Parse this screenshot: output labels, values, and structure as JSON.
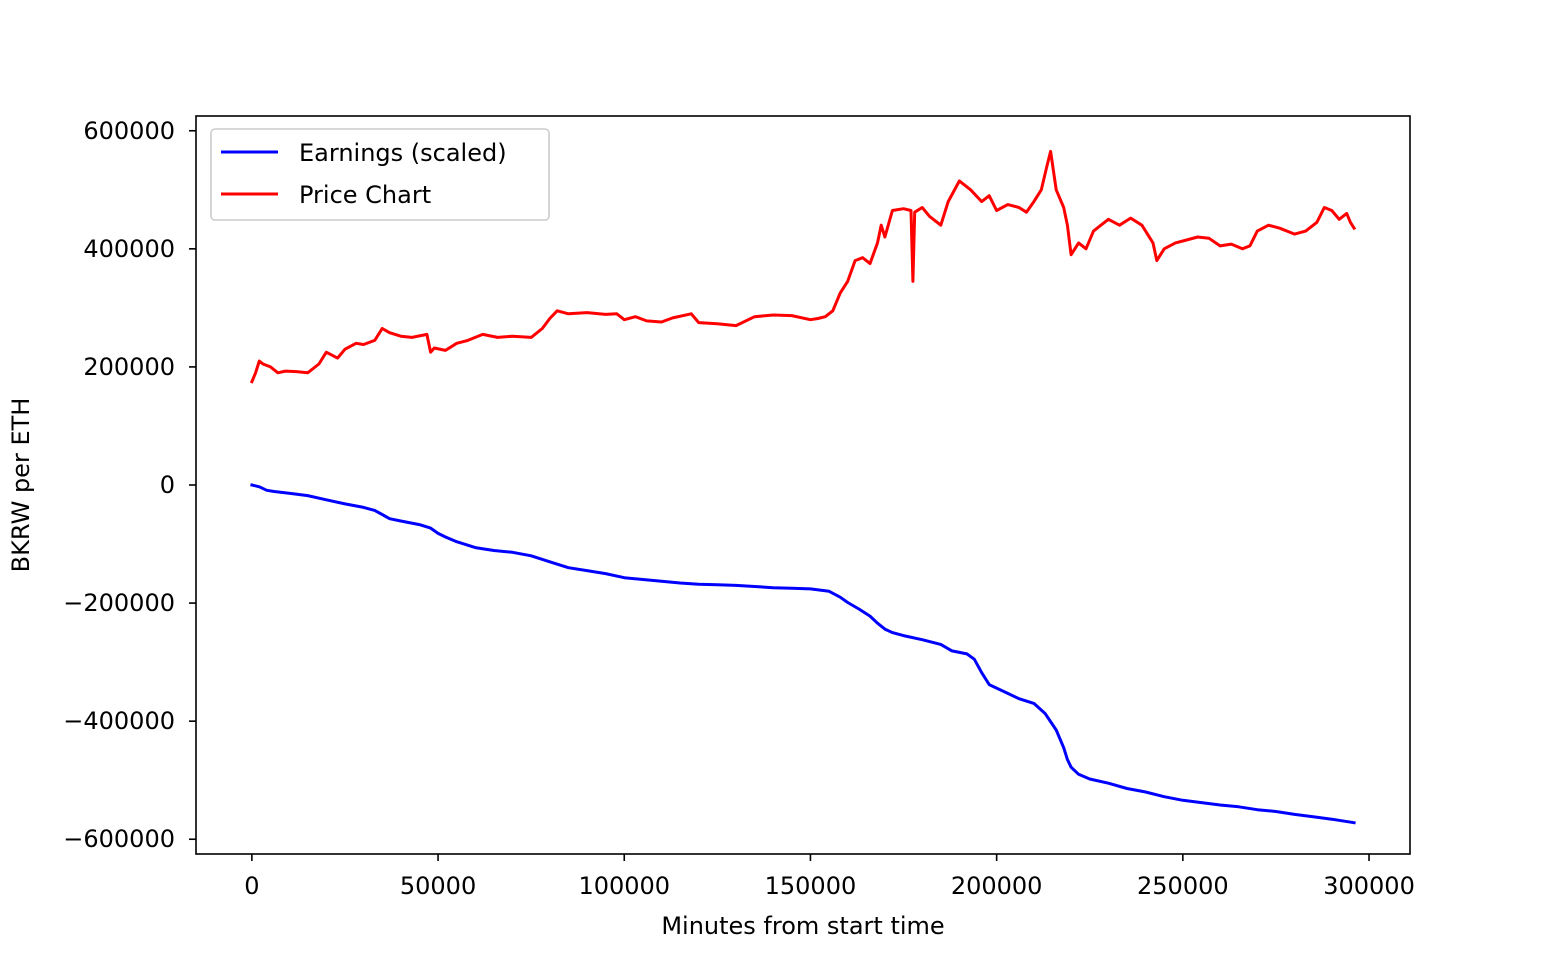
{
  "chart_data": {
    "type": "line",
    "title": "",
    "xlabel": "Minutes from start time",
    "ylabel": "BKRW per ETH",
    "xlim": [
      -15000,
      311000
    ],
    "ylim": [
      -625000,
      625000
    ],
    "xticks": [
      0,
      50000,
      100000,
      150000,
      200000,
      250000,
      300000
    ],
    "xtick_labels": [
      "0",
      "50000",
      "100000",
      "150000",
      "200000",
      "250000",
      "300000"
    ],
    "yticks": [
      600000,
      400000,
      200000,
      0,
      -200000,
      -400000,
      -600000
    ],
    "ytick_labels": [
      "600000",
      "400000",
      "200000",
      "0",
      "−200000",
      "−400000",
      "−600000"
    ],
    "grid": false,
    "legend_position": "upper-left",
    "series": [
      {
        "name": "Earnings (scaled)",
        "color": "#0000ff",
        "x": [
          0,
          2000,
          4000,
          6000,
          10000,
          15000,
          20000,
          25000,
          30000,
          33000,
          35000,
          37000,
          40000,
          45000,
          48000,
          50000,
          52000,
          55000,
          60000,
          65000,
          70000,
          75000,
          80000,
          85000,
          90000,
          95000,
          100000,
          105000,
          110000,
          115000,
          120000,
          125000,
          130000,
          135000,
          140000,
          145000,
          150000,
          155000,
          158000,
          160000,
          163000,
          166000,
          168000,
          170000,
          172000,
          175000,
          180000,
          185000,
          188000,
          192000,
          194000,
          196000,
          198000,
          200000,
          203000,
          206000,
          210000,
          213000,
          216000,
          218000,
          219000,
          220000,
          222000,
          225000,
          230000,
          235000,
          240000,
          245000,
          250000,
          255000,
          260000,
          265000,
          270000,
          275000,
          280000,
          285000,
          290000,
          296000
        ],
        "y": [
          0,
          -3000,
          -9000,
          -11000,
          -14000,
          -18000,
          -25000,
          -32000,
          -38000,
          -43000,
          -50000,
          -57000,
          -61000,
          -67000,
          -73000,
          -82000,
          -88000,
          -96000,
          -106000,
          -111000,
          -114000,
          -120000,
          -130000,
          -140000,
          -145000,
          -150000,
          -157000,
          -160000,
          -163000,
          -166000,
          -168000,
          -169000,
          -170000,
          -172000,
          -174000,
          -175000,
          -176000,
          -180000,
          -190000,
          -199000,
          -210000,
          -222000,
          -234000,
          -244000,
          -250000,
          -255000,
          -262000,
          -270000,
          -281000,
          -286000,
          -295000,
          -318000,
          -338000,
          -344000,
          -353000,
          -362000,
          -370000,
          -387000,
          -415000,
          -445000,
          -465000,
          -478000,
          -490000,
          -498000,
          -505000,
          -514000,
          -520000,
          -528000,
          -534000,
          -538000,
          -542000,
          -545000,
          -550000,
          -553000,
          -558000,
          -562000,
          -566000,
          -572000
        ]
      },
      {
        "name": "Price Chart",
        "color": "#ff0000",
        "x": [
          0,
          1000,
          2000,
          3000,
          5000,
          7000,
          9000,
          12000,
          15000,
          18000,
          20000,
          23000,
          25000,
          28000,
          30000,
          33000,
          35000,
          37000,
          40000,
          43000,
          47000,
          48000,
          49000,
          52000,
          55000,
          58000,
          62000,
          66000,
          70000,
          75000,
          78000,
          80000,
          82000,
          85000,
          90000,
          95000,
          98000,
          100000,
          103000,
          106000,
          110000,
          113000,
          118000,
          120000,
          125000,
          130000,
          135000,
          140000,
          145000,
          150000,
          152000,
          154000,
          156000,
          158000,
          160000,
          162000,
          164000,
          166000,
          168000,
          169000,
          170000,
          172000,
          175000,
          177000,
          177500,
          178000,
          180000,
          182000,
          185000,
          187000,
          190000,
          193000,
          196000,
          198000,
          200000,
          203000,
          206000,
          208000,
          210000,
          212000,
          213500,
          214500,
          216000,
          218000,
          219000,
          220000,
          222000,
          224000,
          226000,
          228000,
          230000,
          233000,
          236000,
          239000,
          242000,
          243000,
          245000,
          248000,
          251000,
          254000,
          257000,
          260000,
          263000,
          266000,
          268000,
          270000,
          273000,
          276000,
          280000,
          283000,
          286000,
          288000,
          290000,
          292000,
          294000,
          295000,
          296000
        ],
        "y": [
          175000,
          190000,
          210000,
          205000,
          200000,
          190000,
          193000,
          192000,
          190000,
          205000,
          225000,
          215000,
          230000,
          240000,
          238000,
          245000,
          265000,
          258000,
          252000,
          250000,
          255000,
          225000,
          232000,
          228000,
          240000,
          245000,
          255000,
          250000,
          252000,
          250000,
          265000,
          282000,
          295000,
          290000,
          292000,
          289000,
          290000,
          280000,
          285000,
          278000,
          276000,
          283000,
          290000,
          275000,
          273000,
          270000,
          285000,
          288000,
          287000,
          280000,
          282000,
          285000,
          295000,
          325000,
          345000,
          380000,
          385000,
          375000,
          410000,
          440000,
          420000,
          465000,
          468000,
          465000,
          345000,
          462000,
          470000,
          455000,
          440000,
          480000,
          515000,
          500000,
          480000,
          490000,
          465000,
          475000,
          470000,
          462000,
          480000,
          500000,
          540000,
          565000,
          500000,
          470000,
          440000,
          390000,
          410000,
          400000,
          430000,
          440000,
          450000,
          440000,
          452000,
          440000,
          410000,
          380000,
          400000,
          410000,
          415000,
          420000,
          418000,
          405000,
          408000,
          400000,
          405000,
          430000,
          440000,
          435000,
          425000,
          430000,
          445000,
          470000,
          465000,
          450000,
          460000,
          445000,
          435000
        ]
      }
    ]
  }
}
